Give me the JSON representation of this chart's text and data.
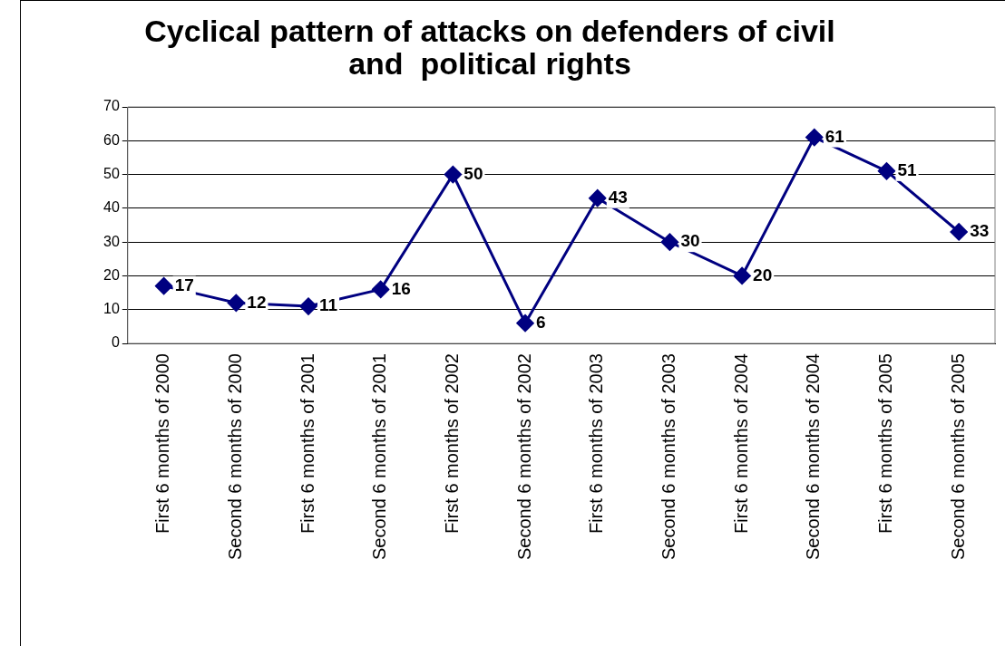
{
  "chart_data": {
    "type": "line",
    "title": "Cyclical pattern of attacks on defenders of civil and  political rights",
    "categories": [
      "First 6 months of 2000",
      "Second 6 months of 2000",
      "First 6 months of 2001",
      "Second 6 months of 2001",
      "First 6 months of 2002",
      "Second 6 months of 2002",
      "First 6 months of 2003",
      "Second 6 months of 2003",
      "First 6 months of 2004",
      "Second 6 months of 2004",
      "First 6 months of 2005",
      "Second 6 months of 2005"
    ],
    "series": [
      {
        "color": "#000080",
        "values": [
          17,
          12,
          11,
          16,
          50,
          6,
          43,
          30,
          20,
          61,
          51,
          33
        ]
      }
    ],
    "ylim": [
      0,
      70
    ],
    "yticks": [
      0,
      10,
      20,
      30,
      40,
      50,
      60,
      70
    ],
    "grid": "y",
    "legend": false,
    "marker": "diamond",
    "line_style": "solid",
    "data_labels": true
  }
}
